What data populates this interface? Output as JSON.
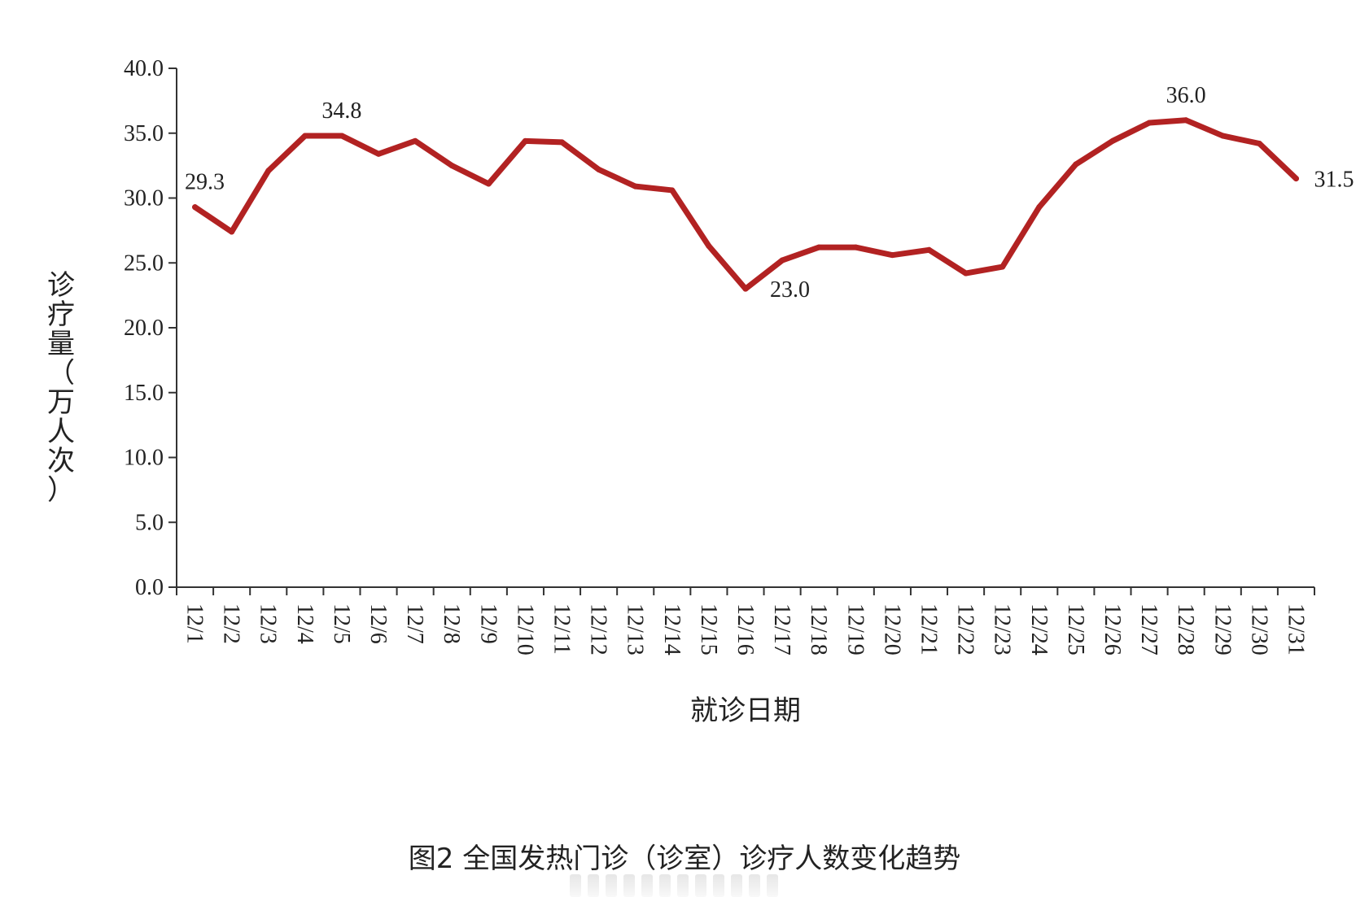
{
  "chart_data": {
    "type": "line",
    "title": "",
    "xlabel": "就诊日期",
    "ylabel": "诊疗量（万人次）",
    "ylim": [
      0,
      40
    ],
    "yticks": [
      "0.0",
      "5.0",
      "10.0",
      "15.0",
      "20.0",
      "25.0",
      "30.0",
      "35.0",
      "40.0"
    ],
    "grid": false,
    "categories": [
      "12/1",
      "12/2",
      "12/3",
      "12/4",
      "12/5",
      "12/6",
      "12/7",
      "12/8",
      "12/9",
      "12/10",
      "12/11",
      "12/12",
      "12/13",
      "12/14",
      "12/15",
      "12/16",
      "12/17",
      "12/18",
      "12/19",
      "12/20",
      "12/21",
      "12/22",
      "12/23",
      "12/24",
      "12/25",
      "12/26",
      "12/27",
      "12/28",
      "12/29",
      "12/30",
      "12/31"
    ],
    "series": [
      {
        "color": "#b22222",
        "values": [
          29.3,
          27.4,
          32.1,
          34.8,
          34.8,
          33.4,
          34.4,
          32.5,
          31.1,
          34.4,
          34.3,
          32.2,
          30.9,
          30.6,
          26.3,
          23.0,
          25.2,
          26.2,
          26.2,
          25.6,
          26.0,
          24.2,
          24.7,
          29.3,
          32.6,
          34.4,
          35.8,
          36.0,
          34.8,
          34.2,
          31.5
        ]
      }
    ],
    "annotations": [
      {
        "index": 0,
        "text": "29.3",
        "pos": "above"
      },
      {
        "index": 4,
        "text": "34.8",
        "pos": "above"
      },
      {
        "index": 15,
        "text": "23.0",
        "pos": "below-right"
      },
      {
        "index": 27,
        "text": "36.0",
        "pos": "above"
      },
      {
        "index": 30,
        "text": "31.5",
        "pos": "right"
      }
    ]
  },
  "caption": "图2 全国发热门诊（诊室）诊疗人数变化趋势"
}
